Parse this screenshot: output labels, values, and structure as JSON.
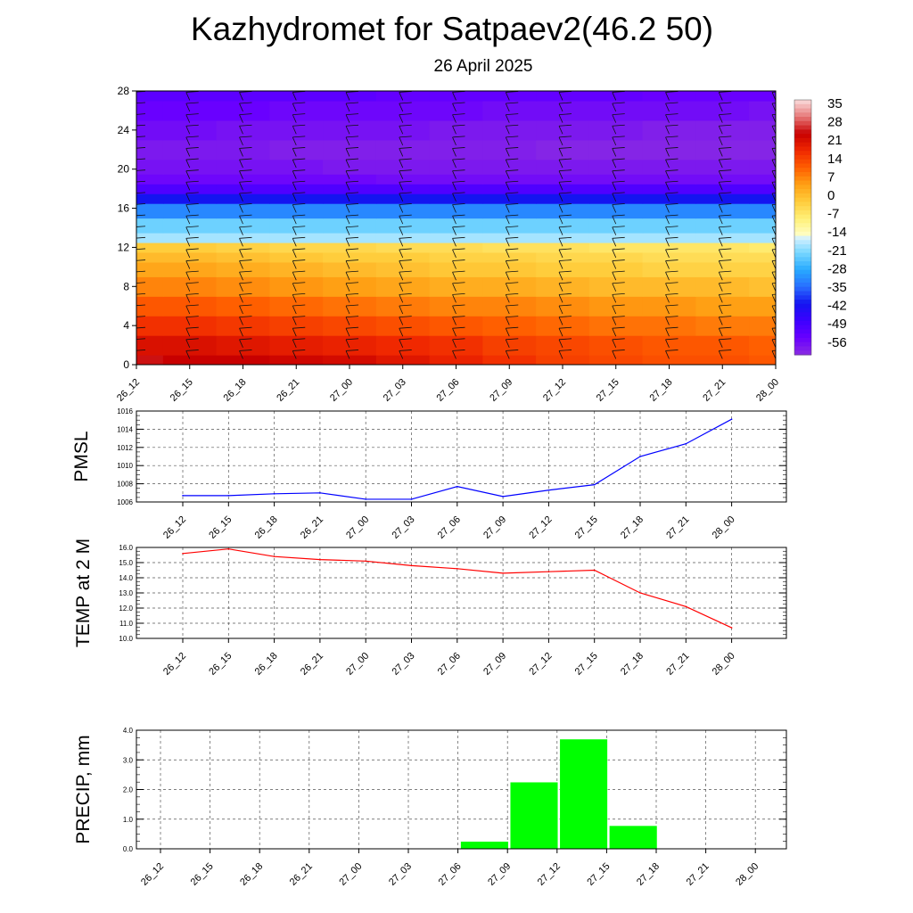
{
  "title": "Kazhydromet for Satpaev2(46.2 50)",
  "subtitle": "26 April 2025",
  "chart_data": [
    {
      "id": "cross-section",
      "type": "heatmap",
      "x_ticks": [
        "26_12",
        "26_15",
        "26_18",
        "26_21",
        "27_00",
        "27_03",
        "27_06",
        "27_09",
        "27_12",
        "27_15",
        "27_18",
        "27_21",
        "28_00"
      ],
      "y_ticks": [
        "0",
        "4",
        "8",
        "12",
        "16",
        "20",
        "24",
        "28"
      ],
      "ylim": [
        0,
        28
      ],
      "levels": [
        0,
        2,
        4,
        6,
        8,
        10,
        11,
        12,
        13,
        14,
        16,
        17,
        18,
        19,
        20,
        22,
        24,
        26,
        28
      ],
      "temps": [
        [
          29,
          28,
          28,
          27,
          26,
          24,
          22,
          20,
          18,
          17,
          16,
          16,
          15
        ],
        [
          25,
          25,
          24,
          23,
          22,
          21,
          20,
          18,
          17,
          16,
          15,
          15,
          14
        ],
        [
          20,
          20,
          19,
          18,
          17,
          16,
          15,
          14,
          13,
          12,
          12,
          11,
          11
        ],
        [
          15,
          15,
          14,
          13,
          12,
          11,
          10,
          10,
          9,
          8,
          8,
          7,
          7
        ],
        [
          10,
          10,
          9,
          8,
          7,
          6,
          5,
          5,
          4,
          3,
          3,
          3,
          2
        ],
        [
          6,
          6,
          5,
          4,
          3,
          2,
          1,
          1,
          0,
          0,
          -1,
          -1,
          -1
        ],
        [
          3,
          3,
          2,
          1,
          0,
          0,
          -1,
          -1,
          -2,
          -2,
          -3,
          -3,
          -3
        ],
        [
          0,
          0,
          -1,
          -2,
          -2,
          -3,
          -3,
          -4,
          -4,
          -5,
          -5,
          -5,
          -6
        ],
        [
          -18,
          -18,
          -18,
          -18,
          -18,
          -18,
          -18,
          -18,
          -18,
          -18,
          -18,
          -18,
          -18
        ],
        [
          -22,
          -22,
          -22,
          -22,
          -22,
          -22,
          -22,
          -22,
          -22,
          -22,
          -22,
          -22,
          -22
        ],
        [
          -32,
          -32,
          -32,
          -32,
          -32,
          -32,
          -32,
          -32,
          -32,
          -32,
          -32,
          -32,
          -32
        ],
        [
          -42,
          -42,
          -42,
          -42,
          -42,
          -42,
          -42,
          -42,
          -42,
          -42,
          -42,
          -42,
          -42
        ],
        [
          -52,
          -52,
          -52,
          -52,
          -52,
          -52,
          -52,
          -52,
          -52,
          -52,
          -52,
          -52,
          -52
        ],
        [
          -57,
          -57,
          -57,
          -57,
          -57,
          -58,
          -58,
          -58,
          -58,
          -58,
          -58,
          -58,
          -58
        ],
        [
          -59,
          -59,
          -59,
          -59,
          -60,
          -60,
          -60,
          -60,
          -60,
          -60,
          -60,
          -60,
          -60
        ],
        [
          -60,
          -60,
          -60,
          -61,
          -61,
          -61,
          -61,
          -61,
          -62,
          -62,
          -62,
          -62,
          -62
        ],
        [
          -58,
          -58,
          -59,
          -59,
          -59,
          -59,
          -60,
          -60,
          -60,
          -60,
          -61,
          -61,
          -61
        ],
        [
          -56,
          -56,
          -56,
          -57,
          -57,
          -57,
          -57,
          -58,
          -58,
          -58,
          -58,
          -58,
          -59
        ],
        [
          -54,
          -54,
          -54,
          -54,
          -54,
          -55,
          -55,
          -55,
          -55,
          -55,
          -56,
          -56,
          -56
        ]
      ],
      "colorbar": {
        "labels": [
          "35",
          "28",
          "21",
          "14",
          "7",
          "0",
          "-7",
          "-14",
          "-21",
          "-28",
          "-35",
          "-42",
          "-49",
          "-56"
        ],
        "min": -63,
        "max": 42
      },
      "wind_barbs": true
    },
    {
      "id": "pmsl",
      "type": "line",
      "ylabel": "PMSL",
      "x": [
        "26_12",
        "26_15",
        "26_18",
        "26_21",
        "27_00",
        "27_03",
        "27_06",
        "27_09",
        "27_12",
        "27_15",
        "27_18",
        "27_21",
        "28_00"
      ],
      "y_ticks": [
        "1006",
        "1008",
        "1010",
        "1012",
        "1014",
        "1016"
      ],
      "ylim": [
        1006,
        1016
      ],
      "series": [
        {
          "color": "#0000ff",
          "values": [
            1006.7,
            1006.7,
            1006.9,
            1007.0,
            1006.3,
            1006.3,
            1007.7,
            1006.6,
            1007.3,
            1007.9,
            1011.0,
            1012.4,
            1015.1
          ]
        }
      ],
      "grid": true
    },
    {
      "id": "temp2m",
      "type": "line",
      "ylabel": "TEMP at 2 M",
      "x": [
        "26_12",
        "26_15",
        "26_18",
        "26_21",
        "27_00",
        "27_03",
        "27_06",
        "27_09",
        "27_12",
        "27_15",
        "27_18",
        "27_21",
        "28_00"
      ],
      "y_ticks": [
        "10.0",
        "11.0",
        "12.0",
        "13.0",
        "14.0",
        "15.0",
        "16.0"
      ],
      "ylim": [
        10,
        16
      ],
      "series": [
        {
          "color": "#ff0000",
          "values": [
            15.6,
            15.9,
            15.4,
            15.2,
            15.1,
            14.8,
            14.6,
            14.3,
            14.4,
            14.5,
            13.0,
            12.1,
            10.7
          ]
        }
      ],
      "grid": true
    },
    {
      "id": "precip",
      "type": "bar",
      "ylabel": "PRECIP, mm",
      "categories": [
        "26_12",
        "26_15",
        "26_18",
        "26_21",
        "27_00",
        "27_03",
        "27_06",
        "27_09",
        "27_12",
        "27_15",
        "27_18",
        "27_21",
        "28_00"
      ],
      "y_ticks": [
        "0.0",
        "1.0",
        "2.0",
        "3.0",
        "4.0"
      ],
      "ylim": [
        0,
        4
      ],
      "values": [
        0,
        0,
        0,
        0,
        0,
        0,
        0.25,
        2.25,
        3.7,
        0.78,
        0,
        0,
        0
      ],
      "bar_color": "#00ff00",
      "grid": true
    }
  ]
}
